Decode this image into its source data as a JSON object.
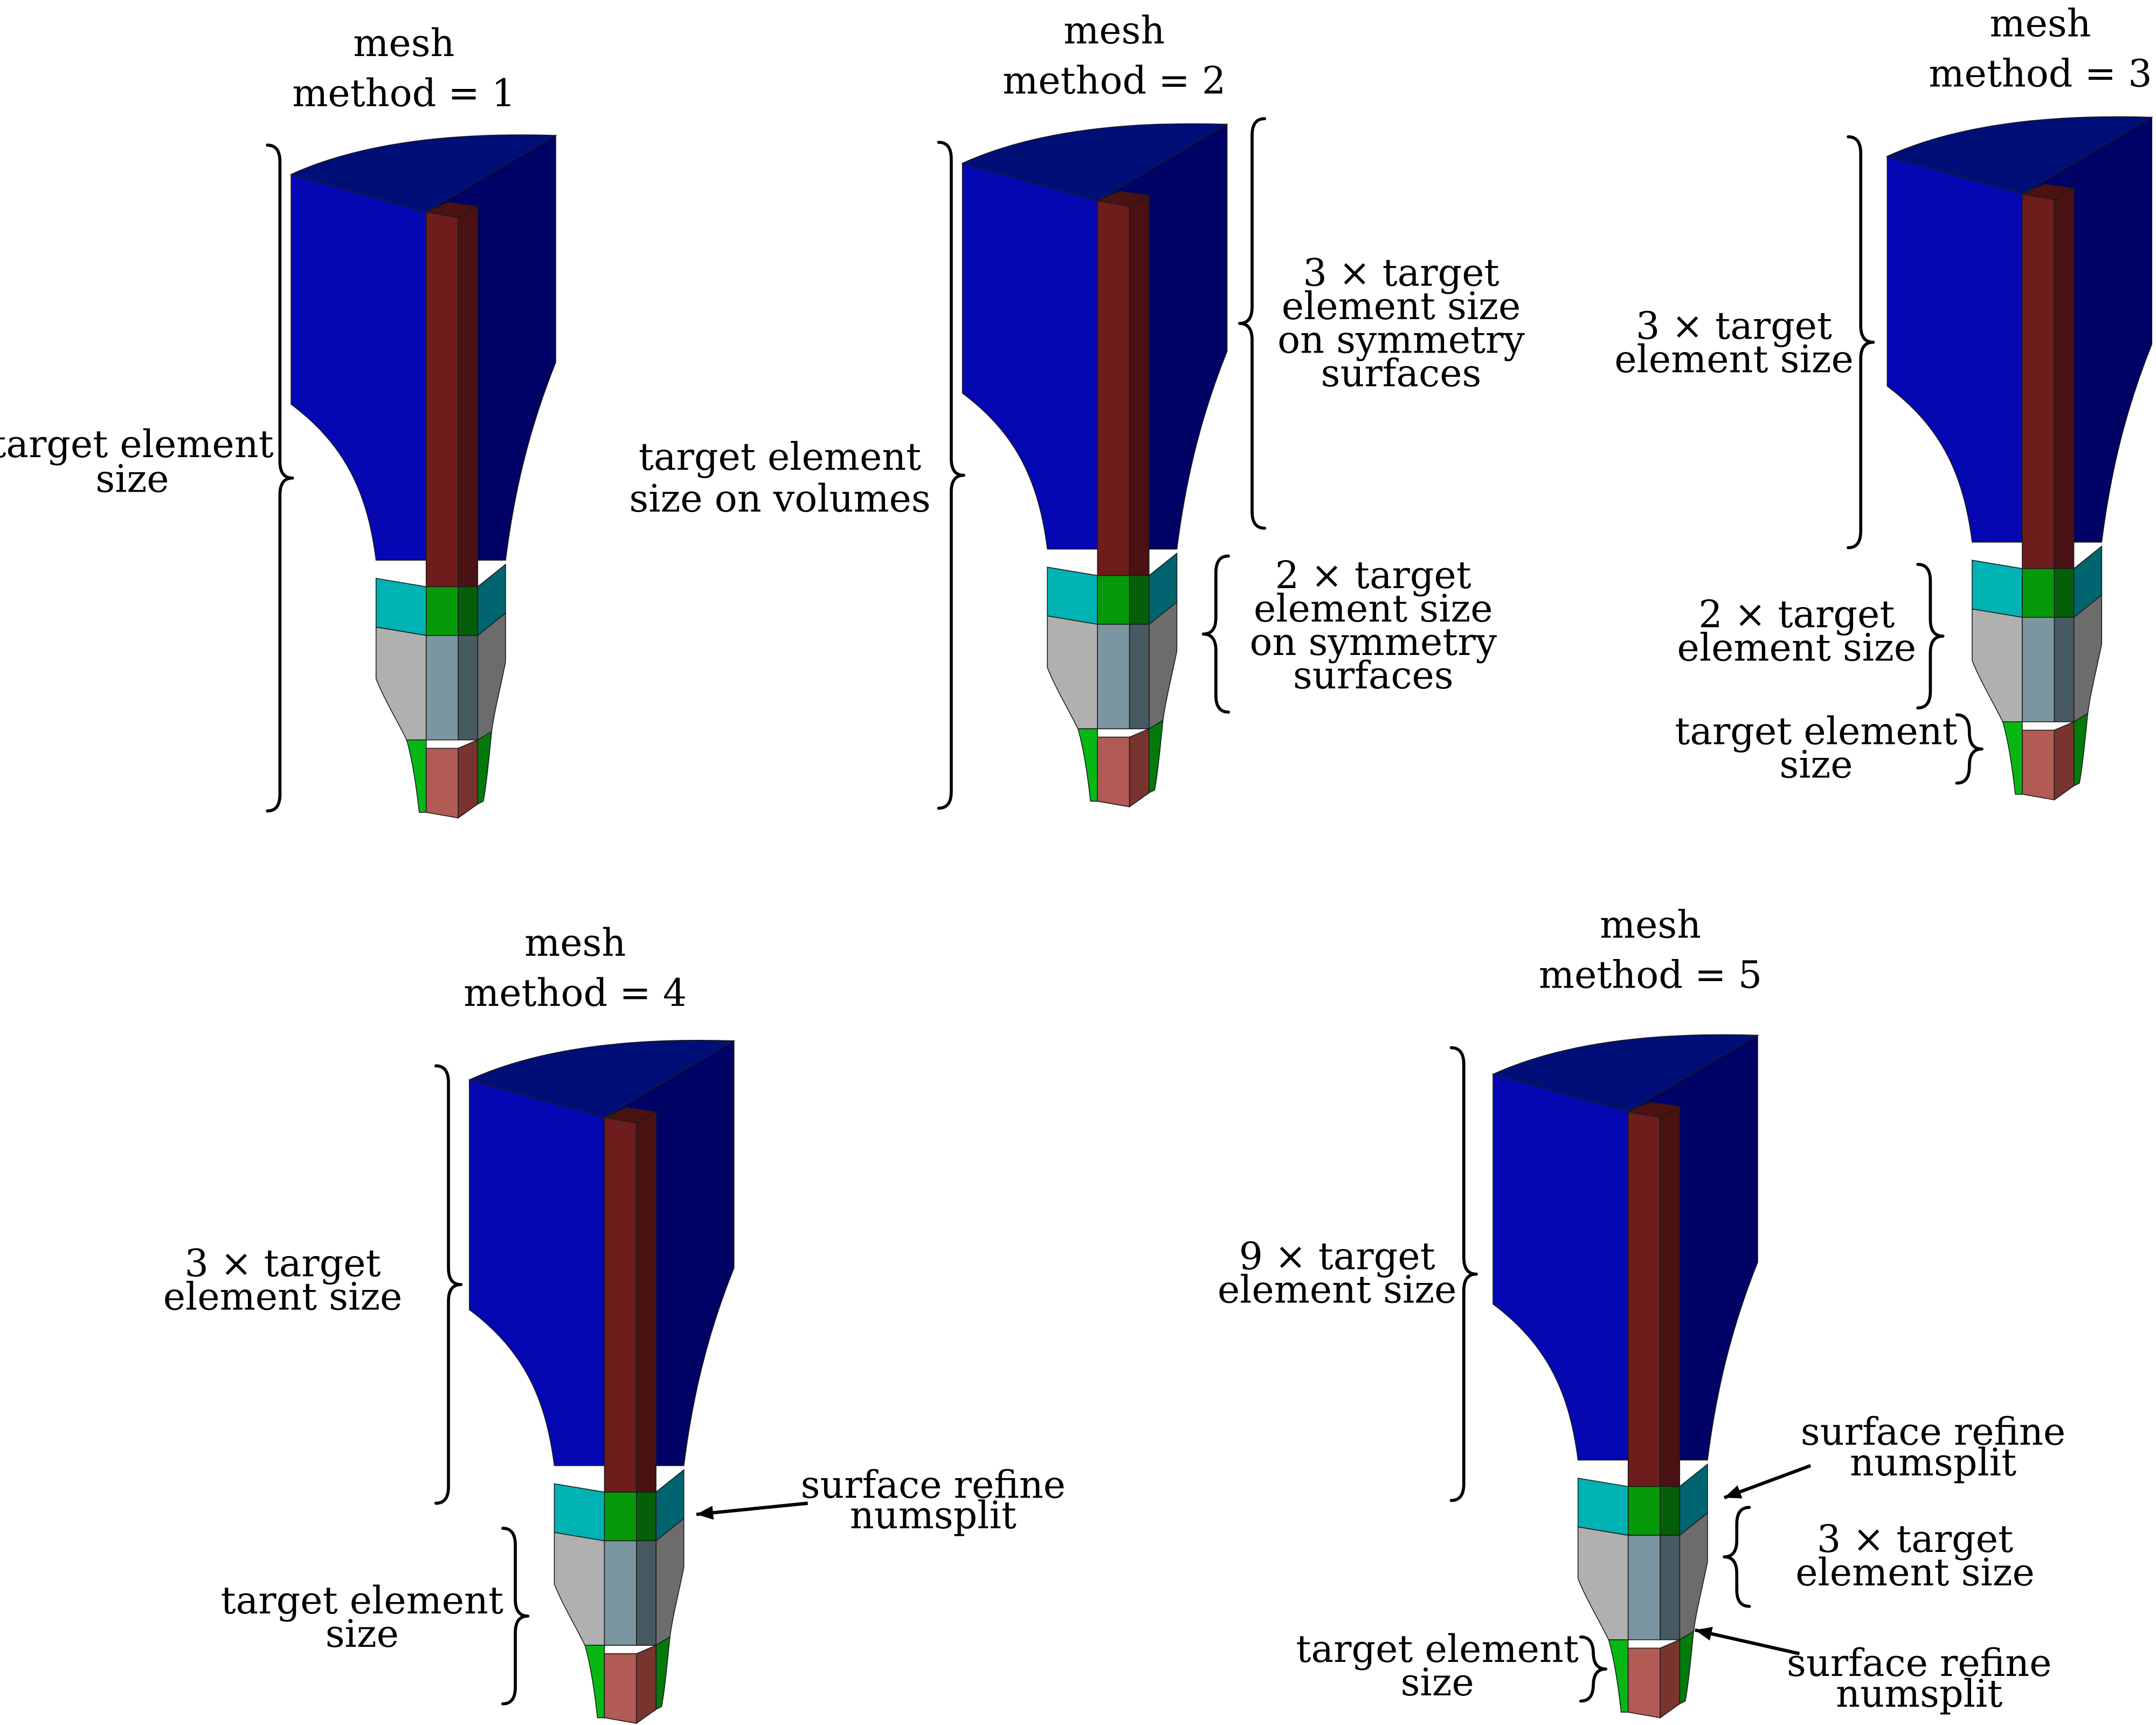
{
  "colors": {
    "top_cap": "#000f78",
    "top_front": "#0508b2",
    "top_side": "#000266",
    "core_front": "#6e1c1c",
    "core_side": "#4a1212",
    "core_top": "#4a1212",
    "cyan_front": "#00b2b4",
    "cyan_side": "#00656f",
    "green_front": "#05990a",
    "green_side": "#045f08",
    "grey_front": "#b0b0b0",
    "grey_side": "#6c6c6c",
    "steel_front": "#7b96a0",
    "steel_side": "#475a62",
    "tip_front": "#07b814",
    "tip_side": "#047a0d",
    "tip_core_front": "#b25a54",
    "tip_core_side": "#7a3430"
  },
  "panels": [
    {
      "title_line1": "mesh",
      "title_line2": "method = 1",
      "annotations": [
        {
          "lines": [
            "target element",
            "size"
          ]
        }
      ]
    },
    {
      "title_line1": "mesh",
      "title_line2": "method = 2",
      "annotations": [
        {
          "lines": [
            "target element",
            "size on volumes"
          ]
        },
        {
          "lines": [
            "3 × target",
            "element size",
            "on symmetry",
            "surfaces"
          ]
        },
        {
          "lines": [
            "2 × target",
            "element size",
            "on symmetry",
            "surfaces"
          ]
        }
      ]
    },
    {
      "title_line1": "mesh",
      "title_line2": "method = 3",
      "annotations": [
        {
          "lines": [
            "3 × target",
            "element size"
          ]
        },
        {
          "lines": [
            "2 × target",
            "element size"
          ]
        },
        {
          "lines": [
            "target element",
            "size"
          ]
        }
      ]
    },
    {
      "title_line1": "mesh",
      "title_line2": "method = 4",
      "annotations": [
        {
          "lines": [
            "3 × target",
            "element size"
          ]
        },
        {
          "lines": [
            "target element",
            "size"
          ]
        },
        {
          "lines": [
            "surface refine",
            "numsplit"
          ]
        }
      ]
    },
    {
      "title_line1": "mesh",
      "title_line2": "method = 5",
      "annotations": [
        {
          "lines": [
            "9 × target",
            "element size"
          ]
        },
        {
          "lines": [
            "surface refine",
            "numsplit"
          ]
        },
        {
          "lines": [
            "3 × target",
            "element size"
          ]
        },
        {
          "lines": [
            "target element",
            "size"
          ]
        },
        {
          "lines": [
            "surface refine",
            "numsplit"
          ]
        }
      ]
    }
  ]
}
